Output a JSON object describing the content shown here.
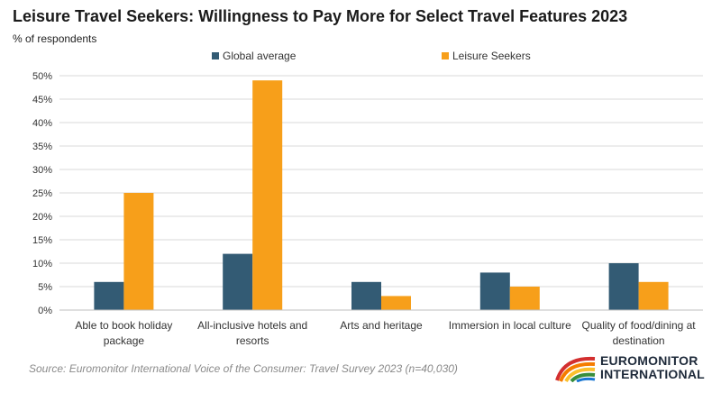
{
  "header": {
    "title": "Leisure Travel Seekers: Willingness to Pay More for Select Travel Features 2023",
    "subtitle": "% of respondents"
  },
  "footer": {
    "source": "Source: Euromonitor International Voice of the Consumer: Travel Survey 2023 (n=40,030)",
    "logo_line1": "EUROMONITOR",
    "logo_line2": "INTERNATIONAL"
  },
  "colors": {
    "global": "#335b74",
    "leisure": "#f79f1a",
    "grid": "#d9d9d9"
  },
  "chart_data": {
    "type": "bar",
    "title": "Leisure Travel Seekers: Willingness to Pay More for Select Travel Features 2023",
    "ylabel": "% of respondents",
    "ylim": [
      0,
      50
    ],
    "yticks": [
      0,
      5,
      10,
      15,
      20,
      25,
      30,
      35,
      40,
      45,
      50
    ],
    "ytick_labels": [
      "0%",
      "5%",
      "10%",
      "15%",
      "20%",
      "25%",
      "30%",
      "35%",
      "40%",
      "45%",
      "50%"
    ],
    "grid": true,
    "legend": "top-center",
    "categories": [
      [
        "Able to book holiday",
        "package"
      ],
      [
        "All-inclusive hotels and",
        "resorts"
      ],
      [
        "Arts and heritage"
      ],
      [
        "Immersion in local culture"
      ],
      [
        "Quality of food/dining at",
        "destination"
      ]
    ],
    "series": [
      {
        "name": "Global average",
        "values": [
          6,
          12,
          6,
          8,
          10
        ]
      },
      {
        "name": "Leisure Seekers",
        "values": [
          25,
          49,
          3,
          5,
          6
        ]
      }
    ]
  }
}
